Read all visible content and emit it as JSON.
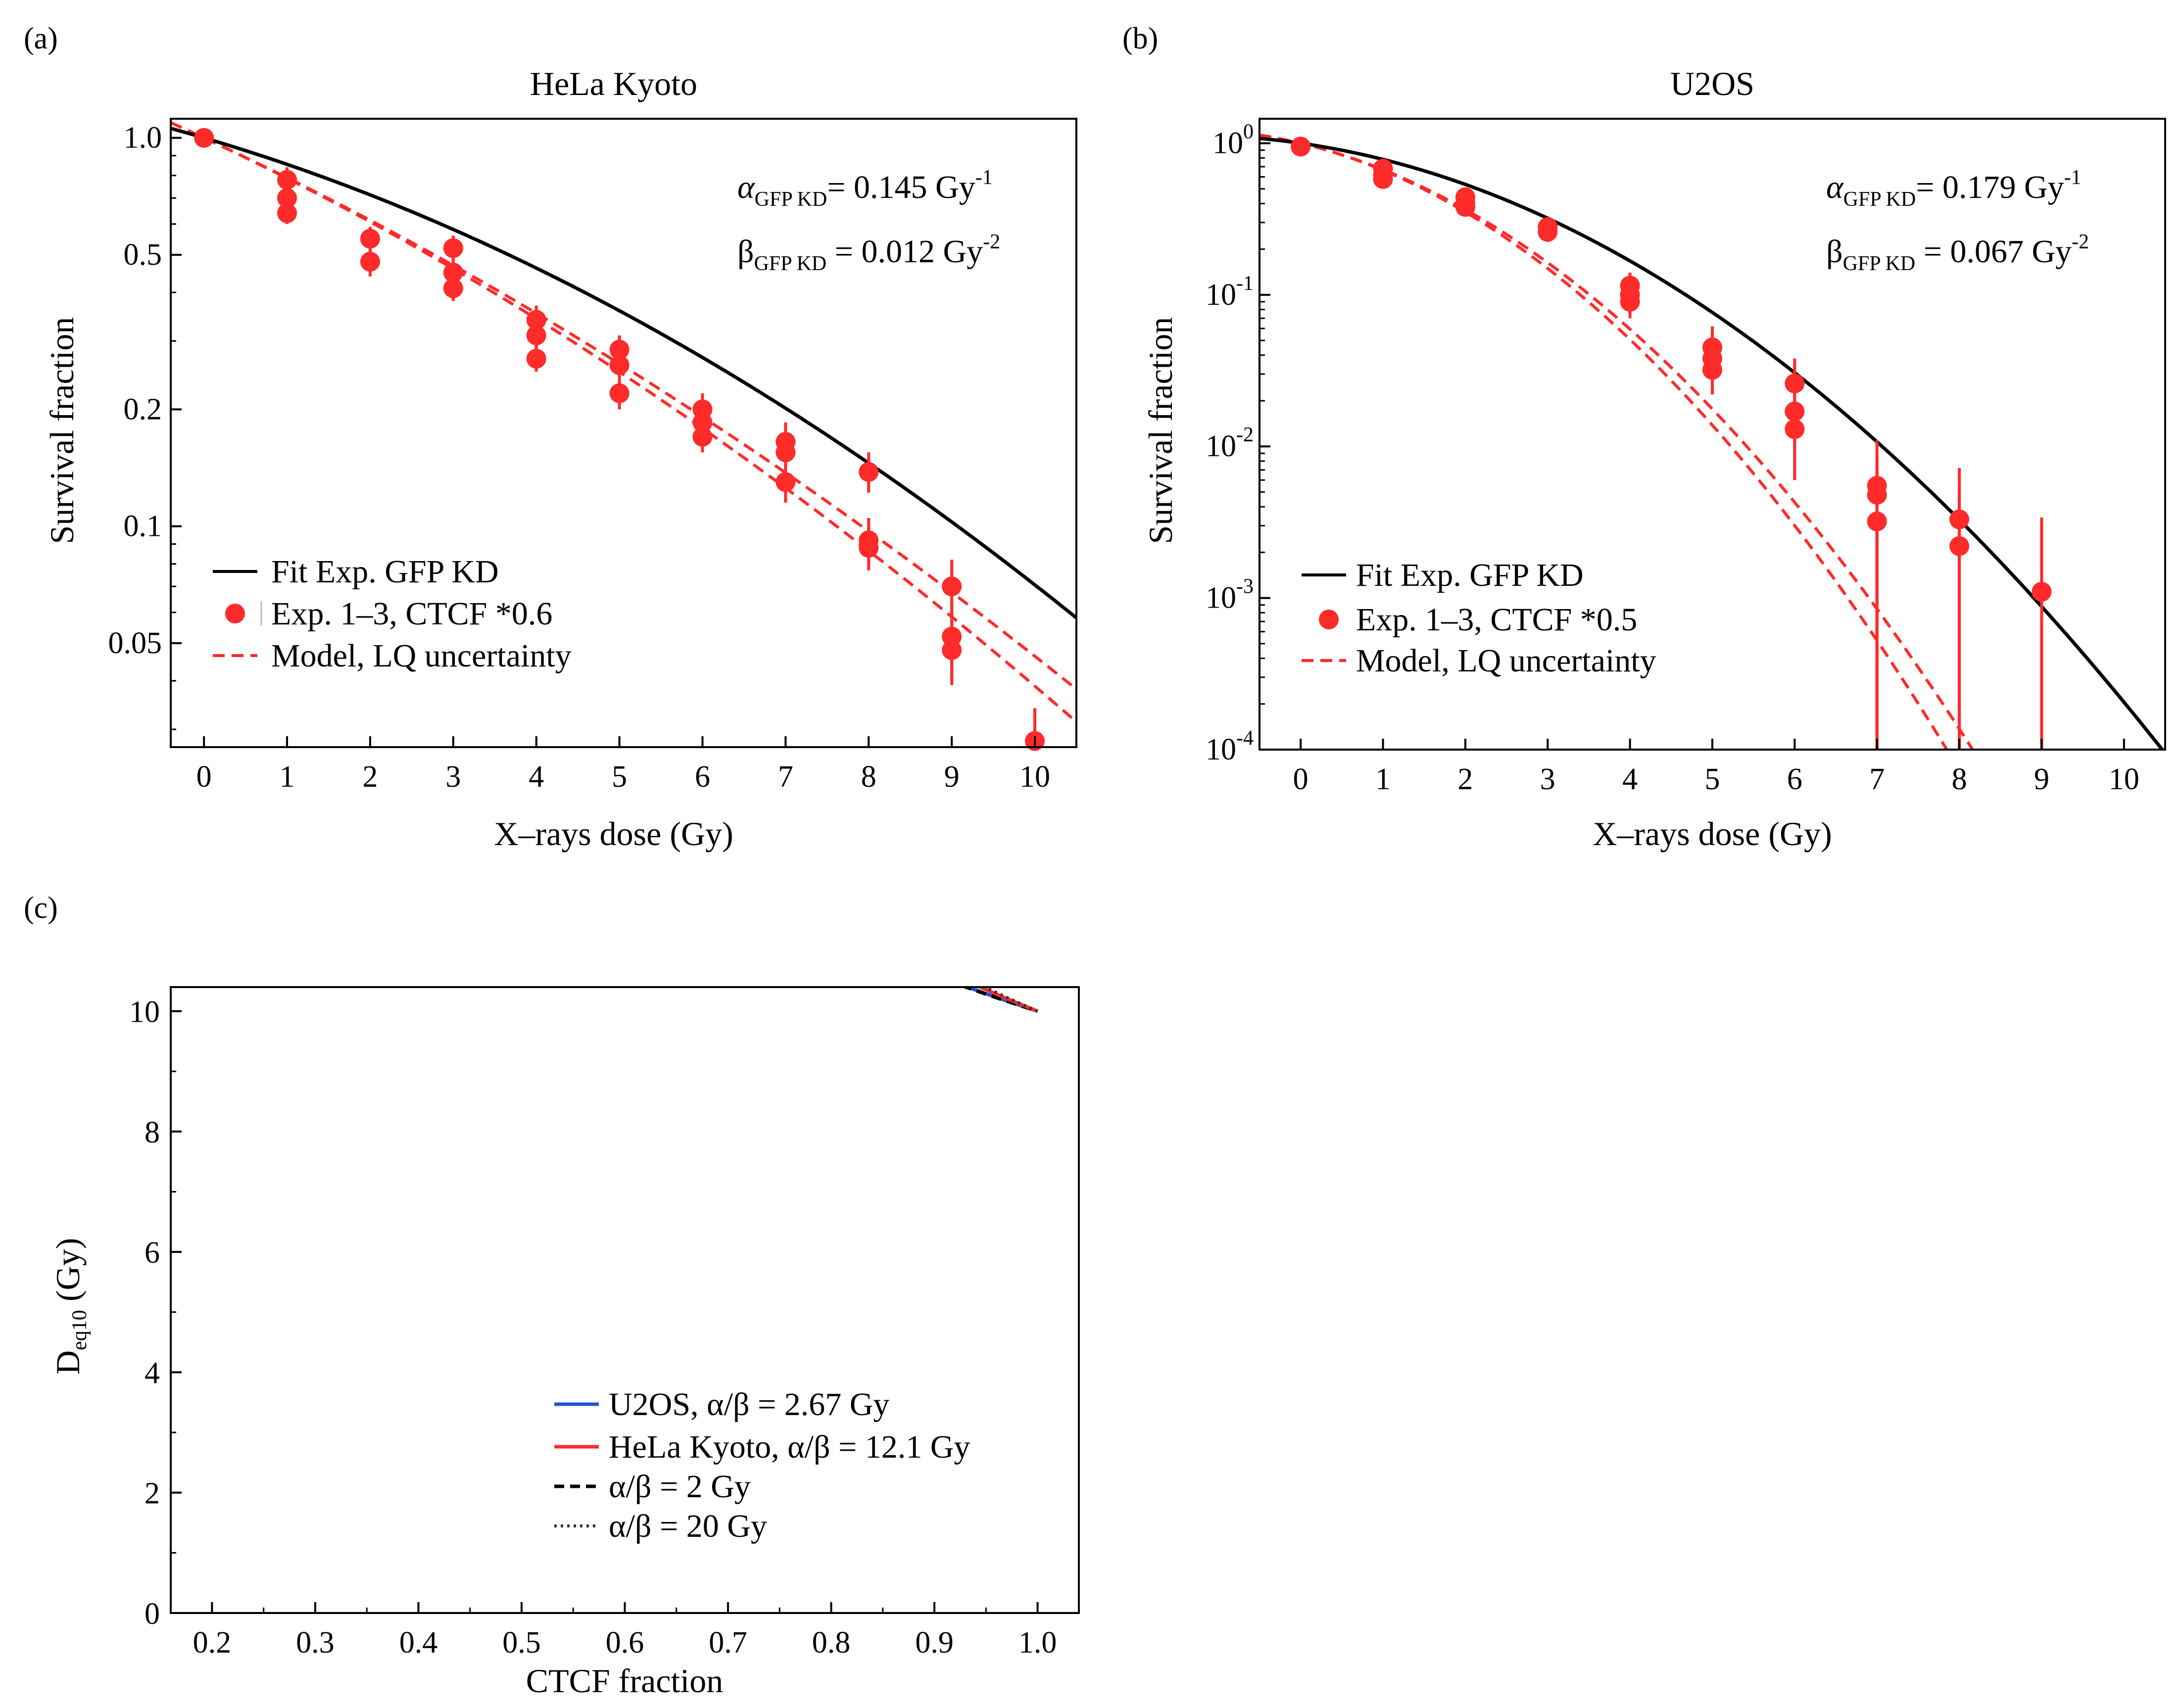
{
  "chart_data": [
    {
      "id": "a",
      "panel_label": "(a)",
      "type": "line",
      "title": "HeLa Kyoto",
      "xlabel": "X–rays dose (Gy)",
      "ylabel": "Survival fraction",
      "xlim": [
        -0.4,
        10.5
      ],
      "ylim": [
        0.027,
        1.12
      ],
      "yscale": "log",
      "xticks": [
        0,
        1,
        2,
        3,
        4,
        5,
        6,
        7,
        8,
        9,
        10
      ],
      "yticks": [
        1.0,
        0.5,
        0.2,
        0.1,
        0.05
      ],
      "ytick_labels": [
        "1.0",
        "0.5",
        "0.2",
        "0.1",
        "0.05"
      ],
      "annotations": {
        "alpha": {
          "symbol": "α",
          "sub": "GFP KD",
          "text": "= 0.145 Gy",
          "sup": "-1"
        },
        "beta": {
          "symbol": "β",
          "sub": "GFP KD",
          "text": " = 0.012 Gy",
          "sup": "-2"
        }
      },
      "fit": {
        "name": "Fit Exp. GFP KD",
        "color": "#000000",
        "alpha": 0.145,
        "beta": 0.012
      },
      "model": {
        "name": "Model, LQ uncertainty",
        "color": "#ff2a2a",
        "curves": [
          {
            "alpha": 0.2283,
            "beta": 0.0079
          },
          {
            "alpha": 0.23,
            "beta": 0.0095
          }
        ]
      },
      "legend": [
        "Fit Exp. GFP KD",
        "Exp. 1–3, CTCF *0.6",
        "Model, LQ uncertainty"
      ],
      "points": {
        "name": "Exp. 1–3, CTCF *0.6",
        "color": "#ff2a2a",
        "data": [
          {
            "x": 0,
            "y": 1.0,
            "lo": 0.97,
            "hi": 1.03
          },
          {
            "x": 1,
            "y": 0.78,
            "lo": 0.72,
            "hi": 0.84
          },
          {
            "x": 1,
            "y": 0.7,
            "lo": 0.65,
            "hi": 0.75
          },
          {
            "x": 1,
            "y": 0.64,
            "lo": 0.6,
            "hi": 0.68
          },
          {
            "x": 2,
            "y": 0.55,
            "lo": 0.51,
            "hi": 0.59
          },
          {
            "x": 2,
            "y": 0.48,
            "lo": 0.44,
            "hi": 0.52
          },
          {
            "x": 3,
            "y": 0.52,
            "lo": 0.48,
            "hi": 0.56
          },
          {
            "x": 3,
            "y": 0.45,
            "lo": 0.42,
            "hi": 0.48
          },
          {
            "x": 3,
            "y": 0.41,
            "lo": 0.38,
            "hi": 0.44
          },
          {
            "x": 4,
            "y": 0.34,
            "lo": 0.31,
            "hi": 0.37
          },
          {
            "x": 4,
            "y": 0.31,
            "lo": 0.28,
            "hi": 0.34
          },
          {
            "x": 4,
            "y": 0.27,
            "lo": 0.25,
            "hi": 0.3
          },
          {
            "x": 5,
            "y": 0.285,
            "lo": 0.26,
            "hi": 0.31
          },
          {
            "x": 5,
            "y": 0.26,
            "lo": 0.24,
            "hi": 0.285
          },
          {
            "x": 5,
            "y": 0.22,
            "lo": 0.2,
            "hi": 0.24
          },
          {
            "x": 6,
            "y": 0.2,
            "lo": 0.18,
            "hi": 0.22
          },
          {
            "x": 6,
            "y": 0.185,
            "lo": 0.165,
            "hi": 0.205
          },
          {
            "x": 6,
            "y": 0.17,
            "lo": 0.155,
            "hi": 0.19
          },
          {
            "x": 7,
            "y": 0.165,
            "lo": 0.145,
            "hi": 0.185
          },
          {
            "x": 7,
            "y": 0.155,
            "lo": 0.14,
            "hi": 0.17
          },
          {
            "x": 7,
            "y": 0.13,
            "lo": 0.115,
            "hi": 0.145
          },
          {
            "x": 8,
            "y": 0.138,
            "lo": 0.122,
            "hi": 0.155
          },
          {
            "x": 8,
            "y": 0.092,
            "lo": 0.08,
            "hi": 0.105
          },
          {
            "x": 8,
            "y": 0.088,
            "lo": 0.077,
            "hi": 0.1
          },
          {
            "x": 9,
            "y": 0.07,
            "lo": 0.058,
            "hi": 0.082
          },
          {
            "x": 9,
            "y": 0.052,
            "lo": 0.042,
            "hi": 0.062
          },
          {
            "x": 9,
            "y": 0.048,
            "lo": 0.039,
            "hi": 0.058
          },
          {
            "x": 10,
            "y": 0.028,
            "lo": 0.027,
            "hi": 0.034
          }
        ]
      }
    },
    {
      "id": "b",
      "panel_label": "(b)",
      "type": "line",
      "title": "U2OS",
      "xlabel": "X–rays dose (Gy)",
      "ylabel": "Survival fraction",
      "xlim": [
        -0.5,
        10.5
      ],
      "ylim": [
        0.0001,
        1.45
      ],
      "yscale": "log",
      "xticks": [
        0,
        1,
        2,
        3,
        4,
        5,
        6,
        7,
        8,
        9,
        10
      ],
      "yticks": [
        1,
        0.1,
        0.01,
        0.001,
        0.0001
      ],
      "ytick_labels": [
        {
          "base": "10",
          "exp": "0"
        },
        {
          "base": "10",
          "exp": "-1"
        },
        {
          "base": "10",
          "exp": "-2"
        },
        {
          "base": "10",
          "exp": "-3"
        },
        {
          "base": "10",
          "exp": "-4"
        }
      ],
      "annotations": {
        "alpha": {
          "symbol": "α",
          "sub": "GFP KD",
          "text": "= 0.179 Gy",
          "sup": "-1"
        },
        "beta": {
          "symbol": "β",
          "sub": "GFP KD",
          "text": " = 0.067 Gy",
          "sup": "-2"
        }
      },
      "fit": {
        "name": "Fit Exp. GFP KD",
        "color": "#000000",
        "alpha": 0.179,
        "beta": 0.067
      },
      "model": {
        "name": "Model, LQ uncertainty",
        "color": "#ff2a2a",
        "curves": [
          {
            "alpha": 0.3,
            "beta": 0.1113
          },
          {
            "alpha": 0.3,
            "beta": 0.1015
          }
        ]
      },
      "legend": [
        "Fit Exp. GFP KD",
        "Exp. 1–3, CTCF *0.5",
        "Model, LQ uncertainty"
      ],
      "points": {
        "name": "Exp. 1–3, CTCF *0.5",
        "color": "#ff2a2a",
        "data": [
          {
            "x": 0,
            "y": 0.95,
            "lo": 0.9,
            "hi": 1.0
          },
          {
            "x": 1,
            "y": 0.68,
            "lo": 0.62,
            "hi": 0.74
          },
          {
            "x": 1,
            "y": 0.62,
            "lo": 0.57,
            "hi": 0.68
          },
          {
            "x": 1,
            "y": 0.58,
            "lo": 0.53,
            "hi": 0.63
          },
          {
            "x": 2,
            "y": 0.44,
            "lo": 0.39,
            "hi": 0.48
          },
          {
            "x": 2,
            "y": 0.4,
            "lo": 0.36,
            "hi": 0.44
          },
          {
            "x": 2,
            "y": 0.38,
            "lo": 0.34,
            "hi": 0.42
          },
          {
            "x": 3,
            "y": 0.28,
            "lo": 0.24,
            "hi": 0.32
          },
          {
            "x": 3,
            "y": 0.26,
            "lo": 0.23,
            "hi": 0.29
          },
          {
            "x": 4,
            "y": 0.115,
            "lo": 0.09,
            "hi": 0.14
          },
          {
            "x": 4,
            "y": 0.1,
            "lo": 0.08,
            "hi": 0.12
          },
          {
            "x": 4,
            "y": 0.09,
            "lo": 0.07,
            "hi": 0.11
          },
          {
            "x": 5,
            "y": 0.045,
            "lo": 0.032,
            "hi": 0.062
          },
          {
            "x": 5,
            "y": 0.038,
            "lo": 0.027,
            "hi": 0.052
          },
          {
            "x": 5,
            "y": 0.032,
            "lo": 0.022,
            "hi": 0.045
          },
          {
            "x": 6,
            "y": 0.026,
            "lo": 0.016,
            "hi": 0.038
          },
          {
            "x": 6,
            "y": 0.017,
            "lo": 0.01,
            "hi": 0.025
          },
          {
            "x": 6,
            "y": 0.013,
            "lo": 0.006,
            "hi": 0.02
          },
          {
            "x": 7,
            "y": 0.0055,
            "lo": 0.0001,
            "hi": 0.011
          },
          {
            "x": 7,
            "y": 0.0048,
            "lo": 0.0001,
            "hi": 0.009
          },
          {
            "x": 7,
            "y": 0.0032,
            "lo": 0.0001,
            "hi": 0.006
          },
          {
            "x": 8,
            "y": 0.0033,
            "lo": 0.0001,
            "hi": 0.0072
          },
          {
            "x": 8,
            "y": 0.0022,
            "lo": 0.0001,
            "hi": 0.005
          },
          {
            "x": 9,
            "y": 0.0011,
            "lo": 0.0001,
            "hi": 0.0034
          }
        ]
      }
    },
    {
      "id": "c",
      "panel_label": "(c)",
      "type": "line",
      "title": "",
      "xlabel": "CTCF fraction",
      "ylabel": {
        "base": "D",
        "sub": "eq10",
        "rest": " (Gy)"
      },
      "xlim": [
        0.16,
        1.04
      ],
      "ylim": [
        0,
        10.4
      ],
      "xticks": [
        0.2,
        0.3,
        0.4,
        0.5,
        0.6,
        0.7,
        0.8,
        0.9,
        1.0
      ],
      "xtick_labels": [
        "0.2",
        "0.3",
        "0.4",
        "0.5",
        "0.6",
        "0.7",
        "0.8",
        "0.9",
        "1.0"
      ],
      "yticks": [
        0,
        2,
        4,
        6,
        8,
        10
      ],
      "series": [
        {
          "name": "U2OS, α/β = 2.67 Gy",
          "color": "#2255cc",
          "dash": "solid",
          "alpha_over_beta": 2.67
        },
        {
          "name": "HeLa Kyoto, α/β = 12.1 Gy",
          "color": "#ff2a2a",
          "dash": "solid",
          "alpha_over_beta": 12.1
        },
        {
          "name": "α/β = 2 Gy",
          "color": "#000000",
          "dash": "dashed",
          "alpha_over_beta": 2
        },
        {
          "name": "α/β = 20 Gy",
          "color": "#333333",
          "dash": "dotted",
          "alpha_over_beta": 20
        }
      ],
      "legend": [
        "U2OS, α/β = 2.67 Gy",
        "HeLa Kyoto, α/β = 12.1 Gy",
        "α/β = 2 Gy",
        "α/β = 20 Gy"
      ]
    }
  ]
}
